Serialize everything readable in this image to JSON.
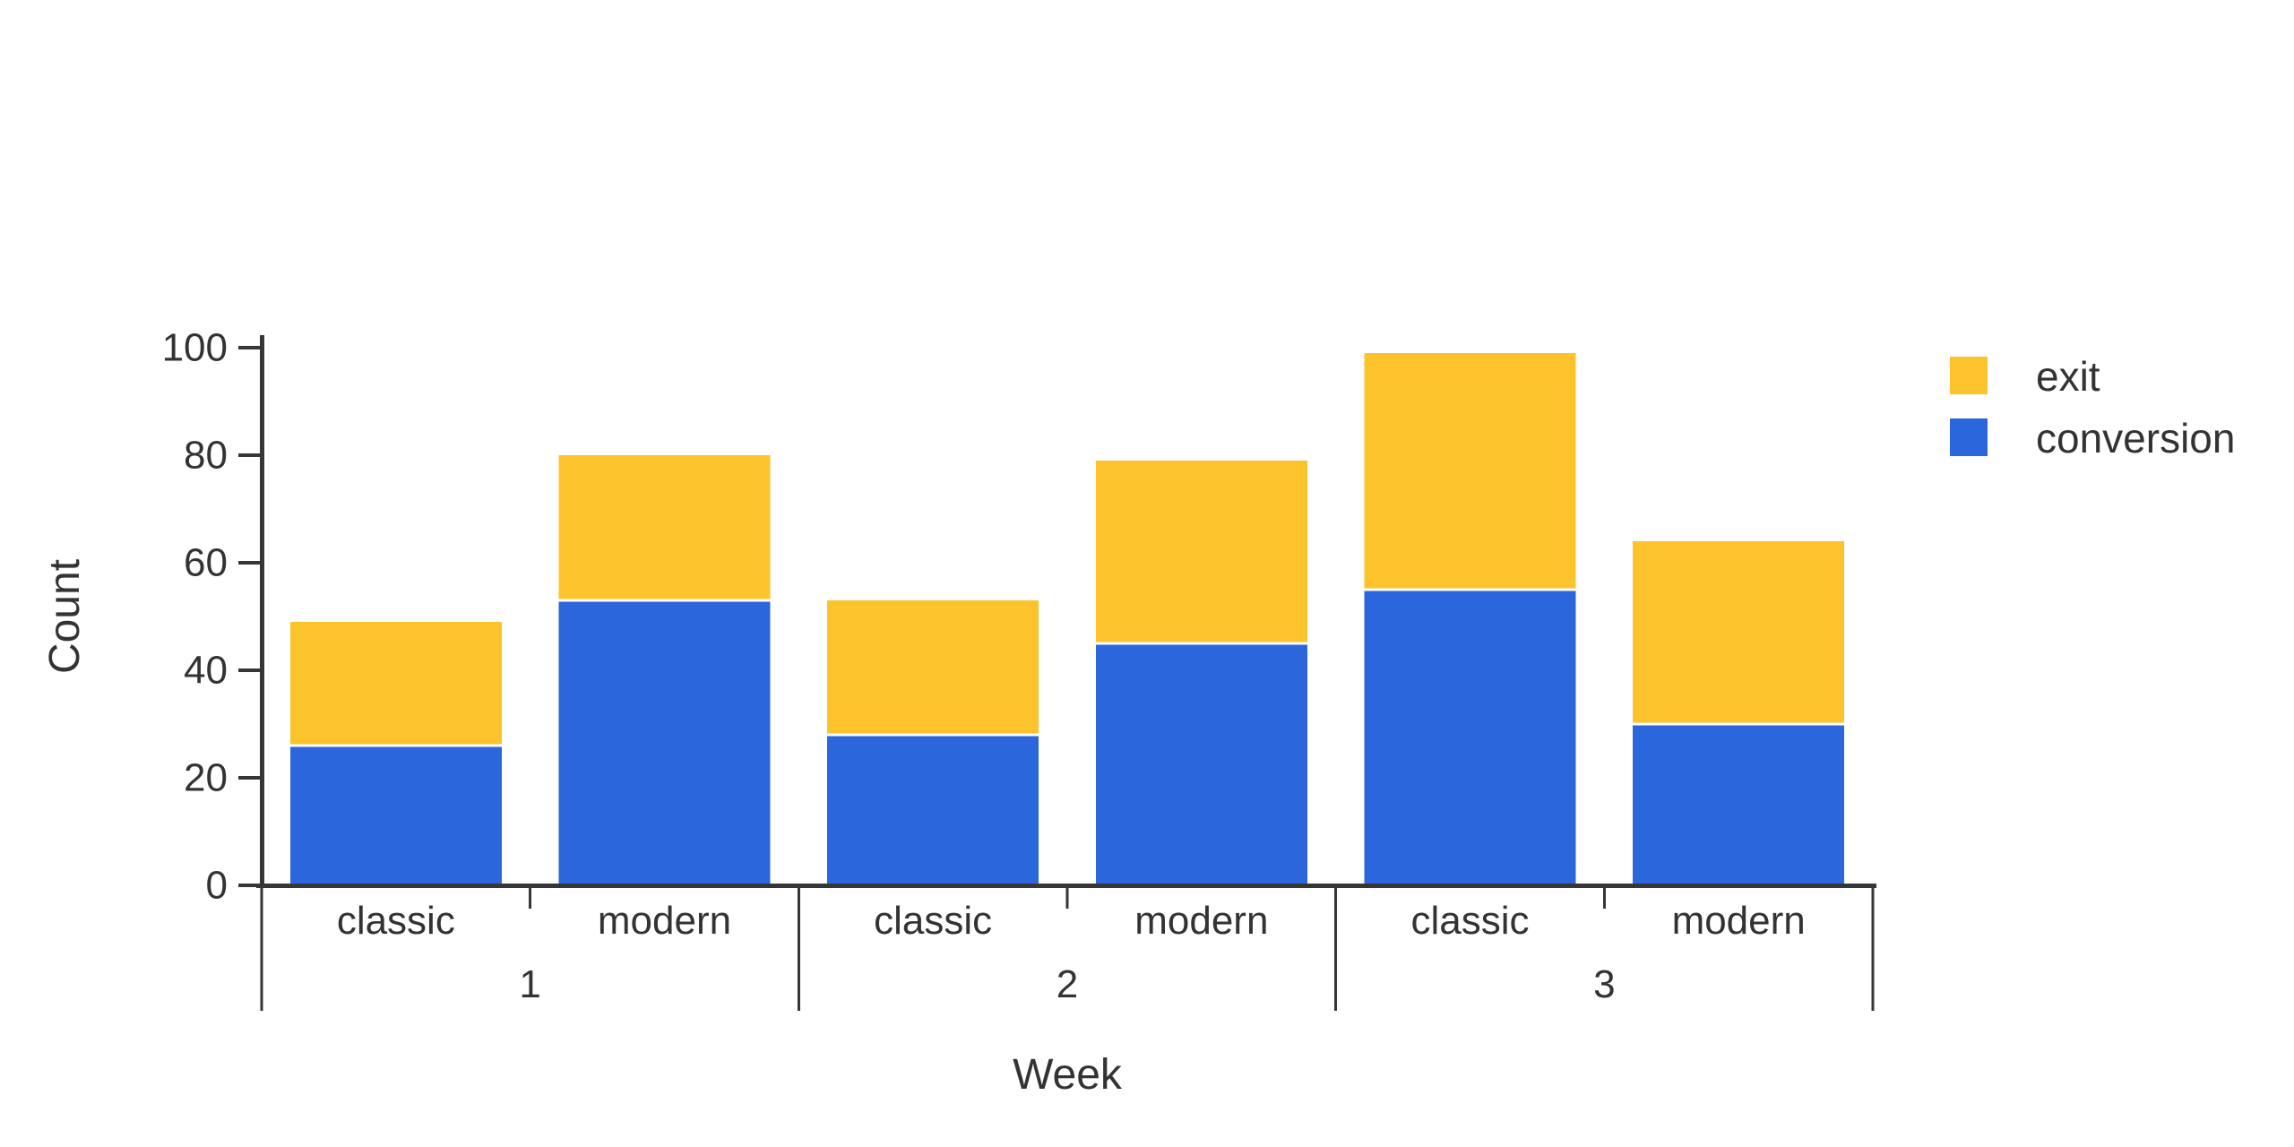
{
  "chart_data": {
    "type": "bar",
    "stacked": true,
    "orientation": "vertical",
    "title": "",
    "xlabel": "Week",
    "ylabel": "Count",
    "ylim": [
      0,
      100
    ],
    "yticks": [
      0,
      20,
      40,
      60,
      80,
      100
    ],
    "grid": false,
    "legend_position": "top-right",
    "group_labels": [
      "1",
      "2",
      "3"
    ],
    "subcategories": [
      "classic",
      "modern"
    ],
    "categories": [
      "1 classic",
      "1 modern",
      "2 classic",
      "2 modern",
      "3 classic",
      "3 modern"
    ],
    "series": [
      {
        "name": "conversion",
        "color": "#2B66DD",
        "values": [
          26,
          53,
          28,
          45,
          55,
          30
        ]
      },
      {
        "name": "exit",
        "color": "#FDC32C",
        "values": [
          23,
          27,
          25,
          34,
          44,
          34
        ]
      }
    ],
    "bar_totals": [
      49,
      80,
      53,
      79,
      99,
      64
    ],
    "groups": [
      {
        "week": "1",
        "bars": [
          {
            "variant": "classic",
            "conversion": 26,
            "exit": 23
          },
          {
            "variant": "modern",
            "conversion": 53,
            "exit": 27
          }
        ]
      },
      {
        "week": "2",
        "bars": [
          {
            "variant": "classic",
            "conversion": 28,
            "exit": 25
          },
          {
            "variant": "modern",
            "conversion": 45,
            "exit": 34
          }
        ]
      },
      {
        "week": "3",
        "bars": [
          {
            "variant": "classic",
            "conversion": 55,
            "exit": 44
          },
          {
            "variant": "modern",
            "conversion": 30,
            "exit": 34
          }
        ]
      }
    ]
  },
  "axes": {
    "y_label": "Count",
    "x_label": "Week",
    "y_tick_labels": [
      "0",
      "20",
      "40",
      "60",
      "80",
      "100"
    ]
  },
  "legend": {
    "items": [
      {
        "label": "exit",
        "color": "#FDC32C"
      },
      {
        "label": "conversion",
        "color": "#2B66DD"
      }
    ]
  },
  "colors": {
    "conversion": "#2B66DD",
    "exit": "#FDC32C",
    "axis": "#363636",
    "text": "#333333",
    "background": "#FFFFFF",
    "segment_divider": "#FFFFFF"
  }
}
